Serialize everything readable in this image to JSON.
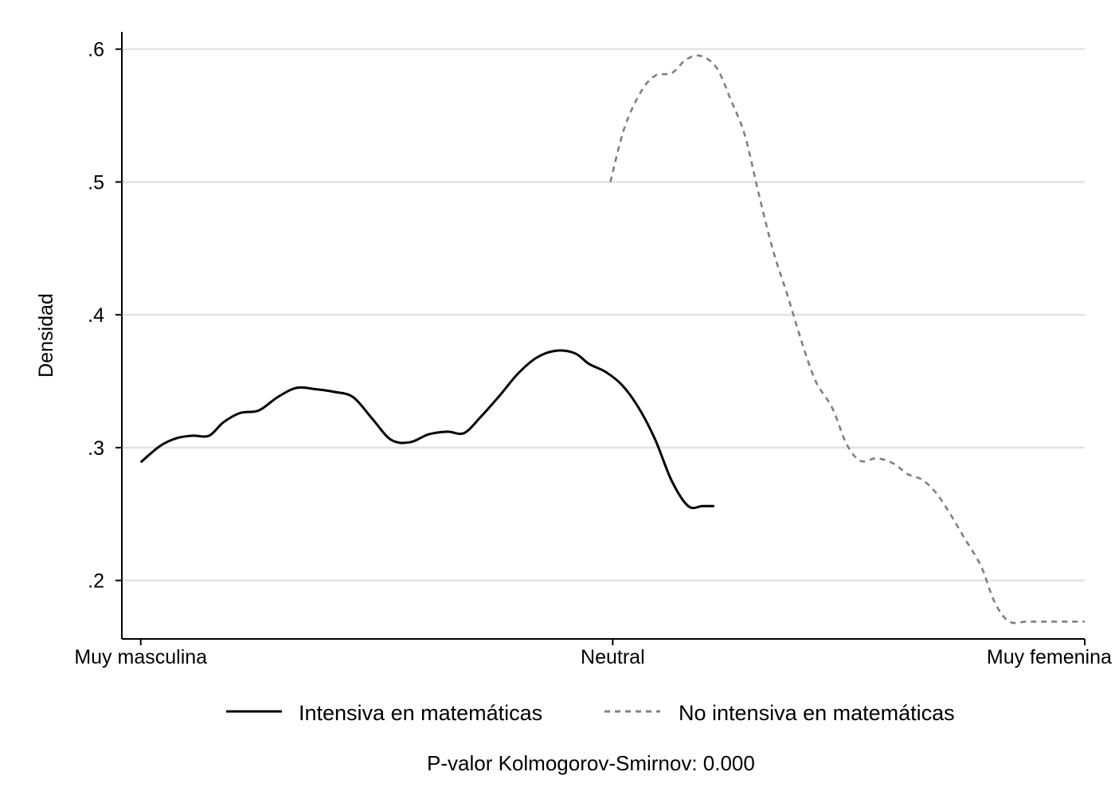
{
  "chart_data": {
    "type": "line",
    "title": "",
    "xlabel": "",
    "ylabel": "Densidad",
    "x_tick_labels": [
      {
        "label": "Muy masculina",
        "x": 1
      },
      {
        "label": "Neutral",
        "x": 3
      },
      {
        "label": "Muy femenina",
        "x": 5
      }
    ],
    "xlim": [
      0.92,
      5.0
    ],
    "ylim": [
      0.156,
      0.613
    ],
    "y_ticks": [
      0.2,
      0.3,
      0.4,
      0.5,
      0.6
    ],
    "y_tick_labels": [
      ".2",
      ".3",
      ".4",
      ".5",
      ".6"
    ],
    "grid": true,
    "legend_position": "bottom",
    "series": [
      {
        "name": "Intensiva en matemáticas",
        "color": "#000000",
        "dash": "solid",
        "x": [
          1.0,
          1.08,
          1.15,
          1.22,
          1.29,
          1.35,
          1.42,
          1.5,
          1.58,
          1.66,
          1.74,
          1.82,
          1.9,
          1.98,
          2.06,
          2.14,
          2.22,
          2.3,
          2.37,
          2.44,
          2.52,
          2.6,
          2.68,
          2.76,
          2.84,
          2.9,
          2.97,
          3.04,
          3.11,
          3.18,
          3.25,
          3.32,
          3.38,
          3.43
        ],
        "values": [
          0.289,
          0.301,
          0.307,
          0.309,
          0.309,
          0.319,
          0.326,
          0.328,
          0.338,
          0.345,
          0.344,
          0.342,
          0.338,
          0.322,
          0.306,
          0.304,
          0.31,
          0.312,
          0.311,
          0.323,
          0.339,
          0.356,
          0.368,
          0.373,
          0.371,
          0.363,
          0.357,
          0.347,
          0.33,
          0.306,
          0.275,
          0.256,
          0.256,
          0.256
        ]
      },
      {
        "name": "No intensiva en matemáticas",
        "color": "#808080",
        "dash": "dashed",
        "x": [
          2.99,
          3.05,
          3.12,
          3.18,
          3.25,
          3.31,
          3.37,
          3.44,
          3.5,
          3.56,
          3.62,
          3.68,
          3.74,
          3.8,
          3.86,
          3.93,
          3.99,
          4.05,
          4.12,
          4.19,
          4.25,
          4.31,
          4.37,
          4.43,
          4.49,
          4.56,
          4.62,
          4.68,
          4.75,
          4.81,
          4.87,
          4.94,
          5.0
        ],
        "values": [
          0.5,
          0.541,
          0.568,
          0.58,
          0.582,
          0.592,
          0.595,
          0.586,
          0.562,
          0.535,
          0.49,
          0.448,
          0.415,
          0.38,
          0.35,
          0.33,
          0.303,
          0.29,
          0.292,
          0.288,
          0.28,
          0.276,
          0.266,
          0.25,
          0.232,
          0.211,
          0.183,
          0.169,
          0.169,
          0.169,
          0.169,
          0.169,
          0.169
        ]
      }
    ]
  },
  "legend": {
    "items": [
      {
        "label": "Intensiva en matemáticas",
        "color": "#000000",
        "dash": "solid"
      },
      {
        "label": "No intensiva en matemáticas",
        "color": "#808080",
        "dash": "dashed"
      }
    ]
  },
  "note": "P-valor Kolmogorov-Smirnov: 0.000"
}
